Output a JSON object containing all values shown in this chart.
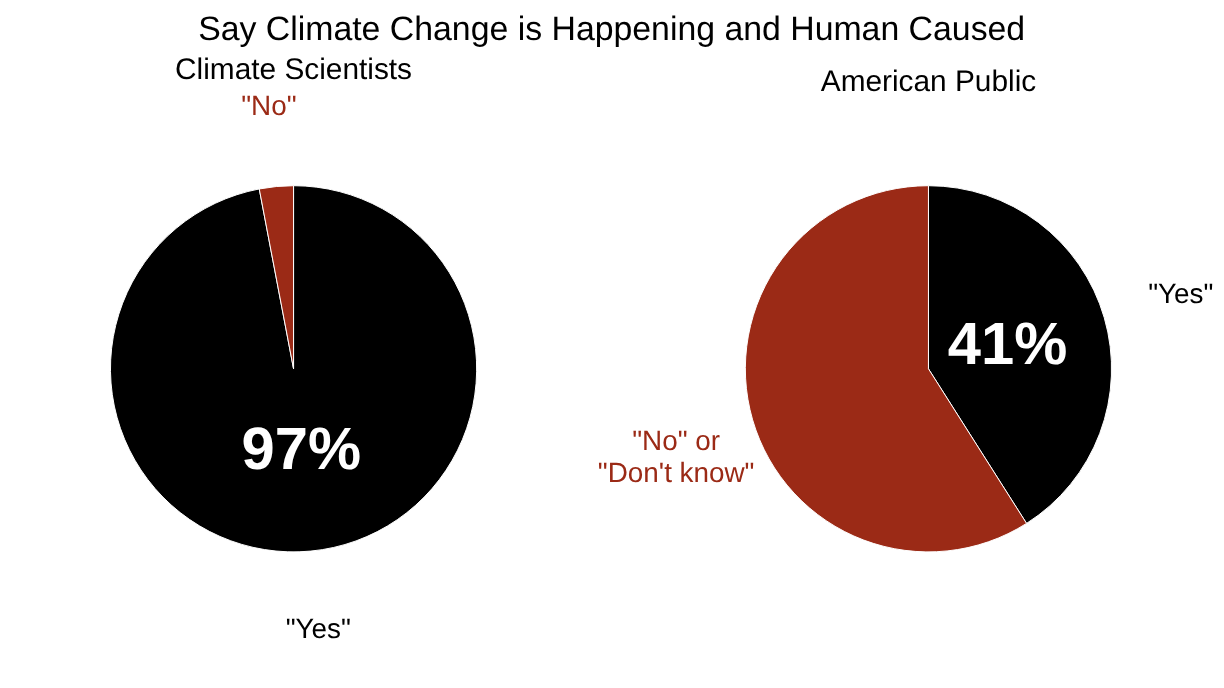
{
  "chart_data": [
    {
      "type": "pie",
      "title": "Say Climate Change is Happening and Human Caused",
      "subtitle": "Climate Scientists",
      "categories": [
        "\"Yes\"",
        "\"No\""
      ],
      "values": [
        97,
        3
      ],
      "colors": [
        "#000000",
        "#9b2a16"
      ],
      "value_labels": [
        "97%",
        null
      ],
      "legend": false
    },
    {
      "type": "pie",
      "subtitle": "American Public",
      "categories": [
        "\"Yes\"",
        "\"No\" or\n\"Don't know\""
      ],
      "values": [
        41,
        59
      ],
      "colors": [
        "#000000",
        "#9b2a16"
      ],
      "value_labels": [
        "41%",
        null
      ],
      "legend": false
    }
  ]
}
